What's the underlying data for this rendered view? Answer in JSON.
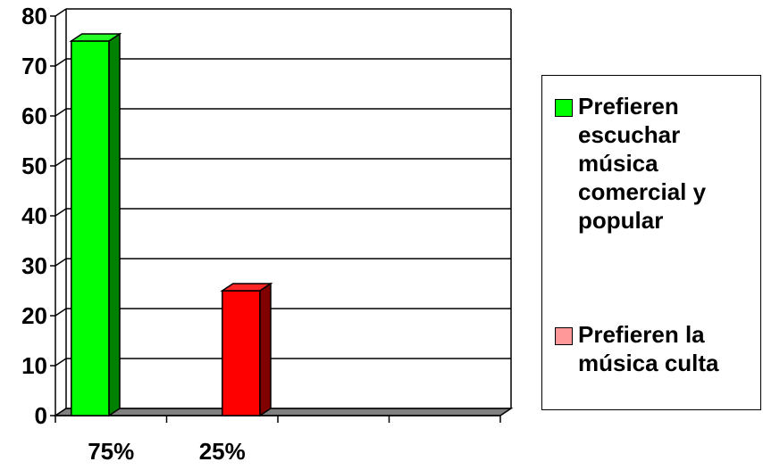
{
  "chart_data": {
    "type": "bar",
    "categories": [
      "75%",
      "25%",
      "",
      ""
    ],
    "series": [
      {
        "name": "Prefieren escuchar música comercial y popular",
        "values": [
          75,
          null,
          null,
          null
        ],
        "color": "#00ff00",
        "side_color": "#008000"
      },
      {
        "name": "Prefieren la música culta",
        "values": [
          null,
          25,
          null,
          null
        ],
        "color": "#ff0000",
        "side_color": "#800000"
      }
    ],
    "ylim": [
      0,
      80
    ],
    "yticks": [
      "0",
      "10",
      "20",
      "30",
      "40",
      "50",
      "60",
      "70",
      "80"
    ],
    "grid": true,
    "legend_position": "right",
    "title": "",
    "xlabel": "",
    "ylabel": ""
  },
  "legend": {
    "items": [
      {
        "label": "Prefieren\nescuchar\nmúsica\ncomercial y\npopular",
        "color": "#00ff00"
      },
      {
        "label": "Prefieren la\nmúsica culta",
        "color": "#ff9999"
      }
    ]
  }
}
